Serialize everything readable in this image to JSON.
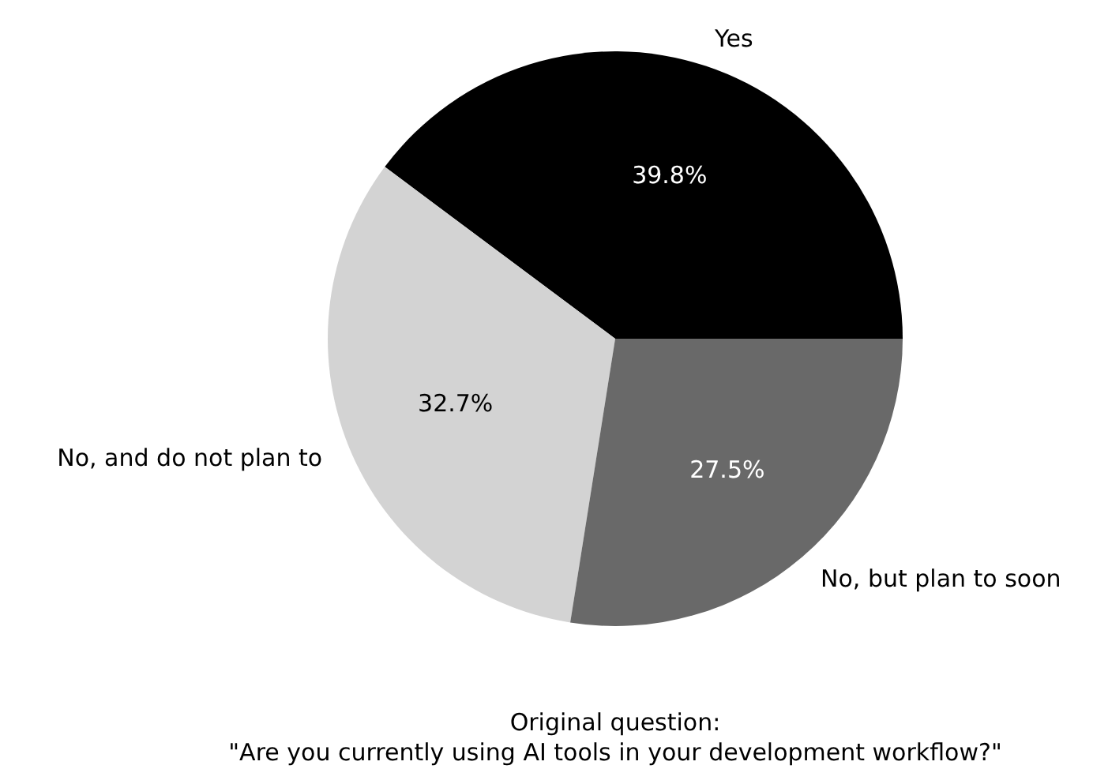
{
  "chart_data": {
    "type": "pie",
    "categories": [
      "Yes",
      "No, and do not plan to",
      "No, but plan to soon"
    ],
    "values": [
      39.8,
      32.7,
      27.5
    ],
    "colors": [
      "#000000",
      "#d3d3d3",
      "#696969"
    ],
    "value_labels": [
      "39.8%",
      "32.7%",
      "27.5%"
    ],
    "annotations": [
      "Original question:",
      "\"Are you currently using AI tools in your development workflow?\""
    ]
  }
}
